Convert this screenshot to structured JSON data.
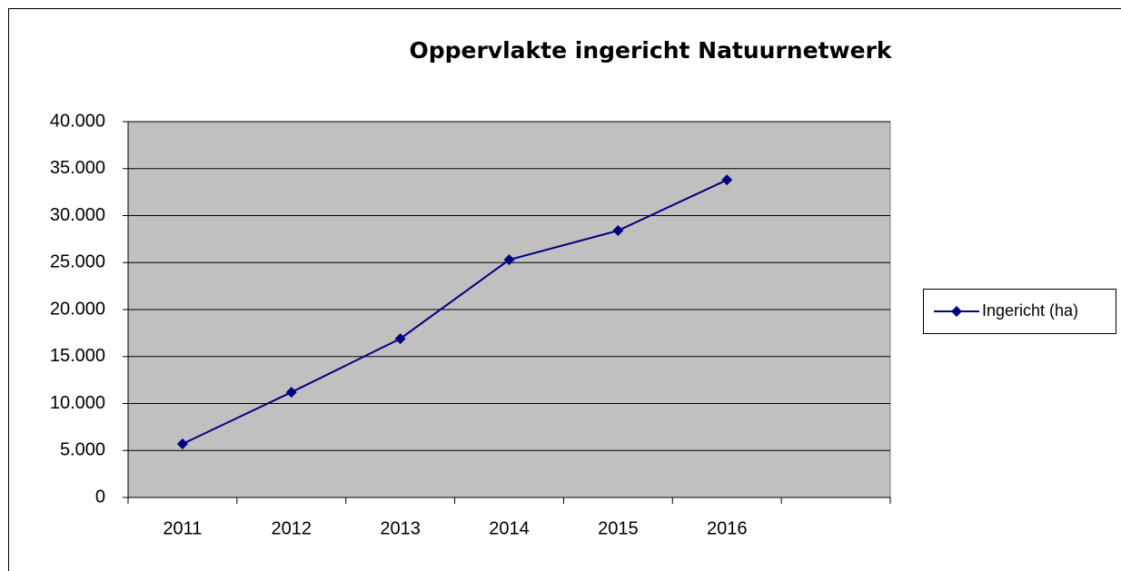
{
  "chart_data": {
    "type": "line",
    "title": "Oppervlakte ingericht Natuurnetwerk",
    "categories": [
      "2011",
      "2012",
      "2013",
      "2014",
      "2015",
      "2016",
      null
    ],
    "series": [
      {
        "name": "Ingericht (ha)",
        "color": "#000080",
        "values": [
          5700,
          11200,
          16900,
          25300,
          28400,
          33800,
          null
        ]
      }
    ],
    "ylim": [
      0,
      40000
    ],
    "yticks": [
      0,
      {
        "value": 5000,
        "label": "5.000"
      },
      {
        "value": 10000,
        "label": "10.000"
      },
      {
        "value": 15000,
        "label": "15.000"
      },
      {
        "value": 20000,
        "label": "20.000"
      },
      {
        "value": 25000,
        "label": "25.000"
      },
      {
        "value": 30000,
        "label": "30.000"
      },
      {
        "value": 35000,
        "label": "35.000"
      },
      {
        "value": 40000,
        "label": "40.000"
      }
    ],
    "grid": true,
    "legend": "right",
    "plot_background": "#c0c0c0"
  }
}
